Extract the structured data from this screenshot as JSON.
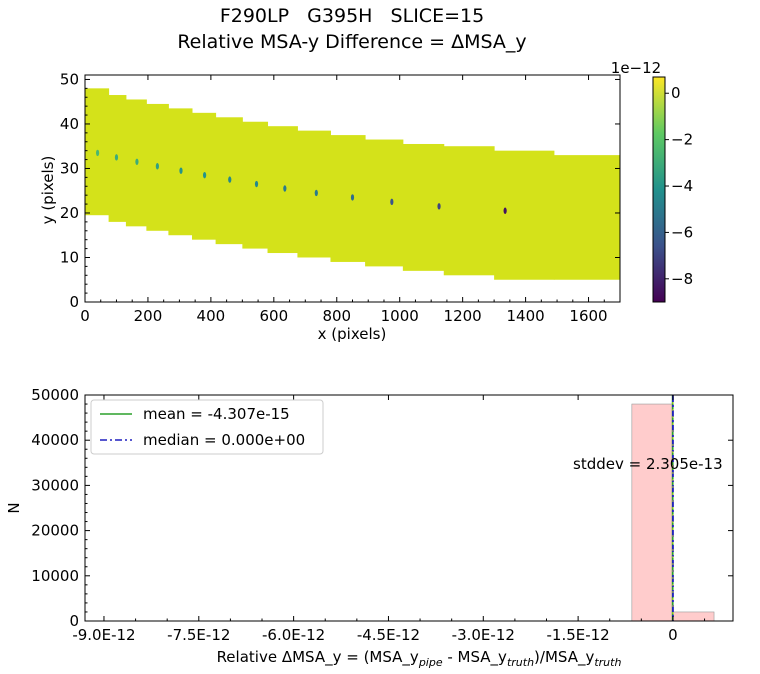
{
  "figure": {
    "title_line1": "F290LP   G395H   SLICE=15",
    "title_line2": "Relative MSA-y Difference = ΔMSA_y"
  },
  "chart_data": [
    {
      "type": "heatmap",
      "xlabel": "x (pixels)",
      "ylabel": "y (pixels)",
      "xlim": [
        0,
        1700
      ],
      "ylim": [
        0,
        51
      ],
      "x_ticks": [
        0,
        200,
        400,
        600,
        800,
        1000,
        1200,
        1400,
        1600
      ],
      "y_ticks": [
        0,
        10,
        20,
        30,
        40,
        50
      ],
      "colormap": "viridis",
      "background_color": "#d4e21a",
      "colorbar": {
        "min": -9e-12,
        "max": 7e-13,
        "ticks": [
          0,
          -2,
          -4,
          -6,
          -8
        ],
        "offset_label": "1e−12"
      },
      "steps": [
        {
          "x0": 0,
          "x1": 75,
          "ymin": 19.5,
          "ymax": 48
        },
        {
          "x0": 75,
          "x1": 130,
          "ymin": 18,
          "ymax": 46.5
        },
        {
          "x0": 130,
          "x1": 195,
          "ymin": 17,
          "ymax": 45.5
        },
        {
          "x0": 195,
          "x1": 265,
          "ymin": 16,
          "ymax": 44.5
        },
        {
          "x0": 265,
          "x1": 340,
          "ymin": 15,
          "ymax": 43.5
        },
        {
          "x0": 340,
          "x1": 415,
          "ymin": 14,
          "ymax": 42.5
        },
        {
          "x0": 415,
          "x1": 500,
          "ymin": 13,
          "ymax": 41.5
        },
        {
          "x0": 500,
          "x1": 580,
          "ymin": 12,
          "ymax": 40.5
        },
        {
          "x0": 580,
          "x1": 675,
          "ymin": 11,
          "ymax": 39.5
        },
        {
          "x0": 675,
          "x1": 780,
          "ymin": 10,
          "ymax": 38.5
        },
        {
          "x0": 780,
          "x1": 890,
          "ymin": 9,
          "ymax": 37.5
        },
        {
          "x0": 890,
          "x1": 1010,
          "ymin": 8,
          "ymax": 36.5
        },
        {
          "x0": 1010,
          "x1": 1140,
          "ymin": 7,
          "ymax": 35.5
        },
        {
          "x0": 1140,
          "x1": 1300,
          "ymin": 6,
          "ymax": 35
        },
        {
          "x0": 1300,
          "x1": 1490,
          "ymin": 5,
          "ymax": 34
        },
        {
          "x0": 1490,
          "x1": 1700,
          "ymin": 5,
          "ymax": 33
        }
      ],
      "spots": [
        {
          "x": 40,
          "y": 33.5,
          "v": -2.5e-12
        },
        {
          "x": 100,
          "y": 32.5,
          "v": -3e-12
        },
        {
          "x": 165,
          "y": 31.5,
          "v": -3e-12
        },
        {
          "x": 230,
          "y": 30.5,
          "v": -3.5e-12
        },
        {
          "x": 305,
          "y": 29.5,
          "v": -4e-12
        },
        {
          "x": 380,
          "y": 28.5,
          "v": -4e-12
        },
        {
          "x": 460,
          "y": 27.5,
          "v": -4.5e-12
        },
        {
          "x": 545,
          "y": 26.5,
          "v": -4.5e-12
        },
        {
          "x": 635,
          "y": 25.5,
          "v": -5e-12
        },
        {
          "x": 735,
          "y": 24.5,
          "v": -5e-12
        },
        {
          "x": 850,
          "y": 23.5,
          "v": -5.5e-12
        },
        {
          "x": 975,
          "y": 22.5,
          "v": -6.5e-12
        },
        {
          "x": 1125,
          "y": 21.5,
          "v": -7e-12
        },
        {
          "x": 1335,
          "y": 20.5,
          "v": -8.5e-12
        }
      ]
    },
    {
      "type": "bar",
      "subtype": "histogram",
      "xlabel_parts": {
        "a": "Relative ΔMSA_y = (MSA_y",
        "sub1": "pipe",
        "b": " - MSA_y",
        "sub2": "truth",
        "c": ")/MSA_y",
        "sub3": "truth"
      },
      "ylabel": "N",
      "xlim": [
        -9.3e-12,
        9.5e-13
      ],
      "ylim": [
        0,
        50000
      ],
      "x_tick_values": [
        -9e-12,
        -7.5e-12,
        -6e-12,
        -4.5e-12,
        -3e-12,
        -1.5e-12,
        0
      ],
      "x_tick_labels": [
        "-9.0E-12",
        "-7.5E-12",
        "-6.0E-12",
        "-4.5E-12",
        "-3.0E-12",
        "-1.5E-12",
        "0"
      ],
      "y_ticks": [
        0,
        10000,
        20000,
        30000,
        40000,
        50000
      ],
      "bars": [
        {
          "x0": -6.5e-13,
          "x1": 0,
          "value": 48000
        },
        {
          "x0": 0,
          "x1": 6.5e-13,
          "value": 2000
        }
      ],
      "bar_color": "#ffcccc",
      "mean": -4.307e-15,
      "median": 0,
      "legend": {
        "position": "upper-left",
        "entries": [
          {
            "label": "mean = -4.307e-15",
            "color": "#2ca02c",
            "style": "solid"
          },
          {
            "label": "median = 0.000e+00",
            "color": "#1f1fbf",
            "style": "dashdot"
          }
        ]
      },
      "annotation": {
        "text": "stddev = 2.305e-13",
        "x": -1.75e-12,
        "y": 34000
      }
    }
  ]
}
